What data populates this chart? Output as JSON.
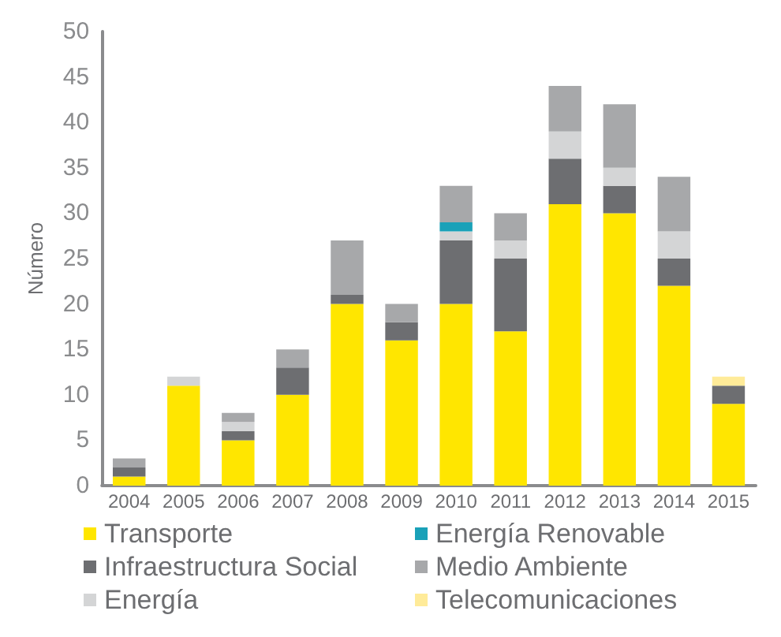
{
  "chart_data": {
    "type": "bar",
    "stacked": true,
    "ylabel": "Número",
    "categories": [
      "2004",
      "2005",
      "2006",
      "2007",
      "2008",
      "2009",
      "2010",
      "2011",
      "2012",
      "2013",
      "2014",
      "2015"
    ],
    "series": [
      {
        "name": "Transporte",
        "color": "#ffe600",
        "values": [
          1,
          11,
          5,
          10,
          20,
          16,
          20,
          17,
          31,
          30,
          22,
          9
        ]
      },
      {
        "name": "Infraestructura Social",
        "color": "#6d6e71",
        "values": [
          1,
          0,
          1,
          3,
          1,
          2,
          7,
          8,
          5,
          3,
          3,
          2
        ]
      },
      {
        "name": "Energía",
        "color": "#d4d5d6",
        "values": [
          0,
          1,
          1,
          0,
          0,
          0,
          1,
          2,
          3,
          2,
          3,
          0
        ]
      },
      {
        "name": "Energía Renovable",
        "color": "#1aa1b8",
        "values": [
          0,
          0,
          0,
          0,
          0,
          0,
          1,
          0,
          0,
          0,
          0,
          0
        ]
      },
      {
        "name": "Medio Ambiente",
        "color": "#a7a8aa",
        "values": [
          1,
          0,
          1,
          2,
          6,
          2,
          4,
          3,
          5,
          7,
          6,
          0
        ]
      },
      {
        "name": "Telecomunicaciones",
        "color": "#ffeb99",
        "values": [
          0,
          0,
          0,
          0,
          0,
          0,
          0,
          0,
          0,
          0,
          0,
          1
        ]
      }
    ],
    "ylim": [
      0,
      50
    ],
    "yticks": [
      0,
      5,
      10,
      15,
      20,
      25,
      30,
      35,
      40,
      45,
      50
    ],
    "grid": false,
    "legend": "bottom"
  }
}
